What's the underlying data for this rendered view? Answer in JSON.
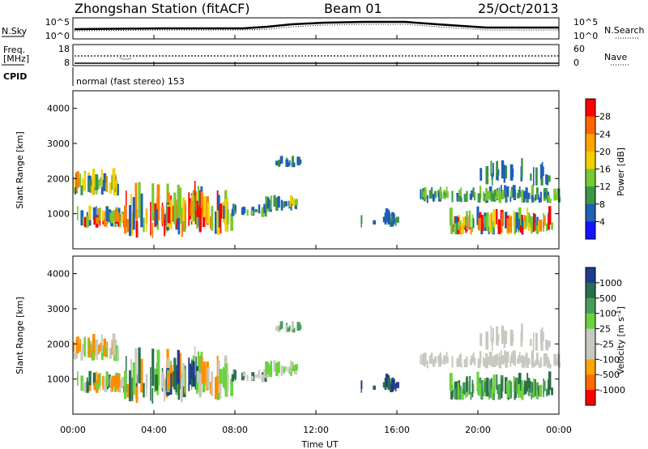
{
  "header": {
    "station": "Zhongshan Station (fitACF)",
    "beam": "Beam 01",
    "date": "25/Oct/2013"
  },
  "labels": {
    "nsky": "N.Sky",
    "nsearch": "N.Search",
    "freq": "Freq.",
    "freq_unit": "[MHz]",
    "nave": "Nave",
    "cpid": "CPID",
    "cpid_text": "normal (fast stereo) 153",
    "time_axis": "Time UT",
    "slant_range": "Slant Range",
    "slant_unit": "[km]"
  },
  "noise_panel": {
    "left_ticks": [
      "10^5",
      "10^0"
    ],
    "right_ticks": [
      "10^5",
      "10^0"
    ]
  },
  "freq_panel": {
    "left_ticks": [
      "18",
      "8"
    ],
    "right_ticks": [
      "60",
      "0"
    ]
  },
  "range_ticks": [
    "4000",
    "3000",
    "2000",
    "1000"
  ],
  "time_ticks": [
    "00:00",
    "04:00",
    "08:00",
    "12:00",
    "16:00",
    "20:00",
    "00:00"
  ],
  "power_bar": {
    "title": "Power",
    "unit": "[dB]",
    "labels": [
      "28",
      "24",
      "20",
      "16",
      "12",
      "8",
      "4"
    ],
    "colors": [
      "#ff0000",
      "#ff6600",
      "#ffa500",
      "#f2d000",
      "#78c832",
      "#3c9646",
      "#1f5fb4",
      "#1414ff"
    ]
  },
  "velocity_bar": {
    "title": "Velocity",
    "unit": "[m s",
    "unit_sup": "-1",
    "unit_end": "]",
    "labels": [
      "1000",
      "500",
      "100",
      "25",
      "-25",
      "-100",
      "-500",
      "-1000"
    ],
    "colors": [
      "#1e3c8c",
      "#2b6e4a",
      "#4a9c5c",
      "#6ad23c",
      "#c8c8c0",
      "#c8c8c0",
      "#ffa500",
      "#ff6a00",
      "#ff0000"
    ]
  }
}
